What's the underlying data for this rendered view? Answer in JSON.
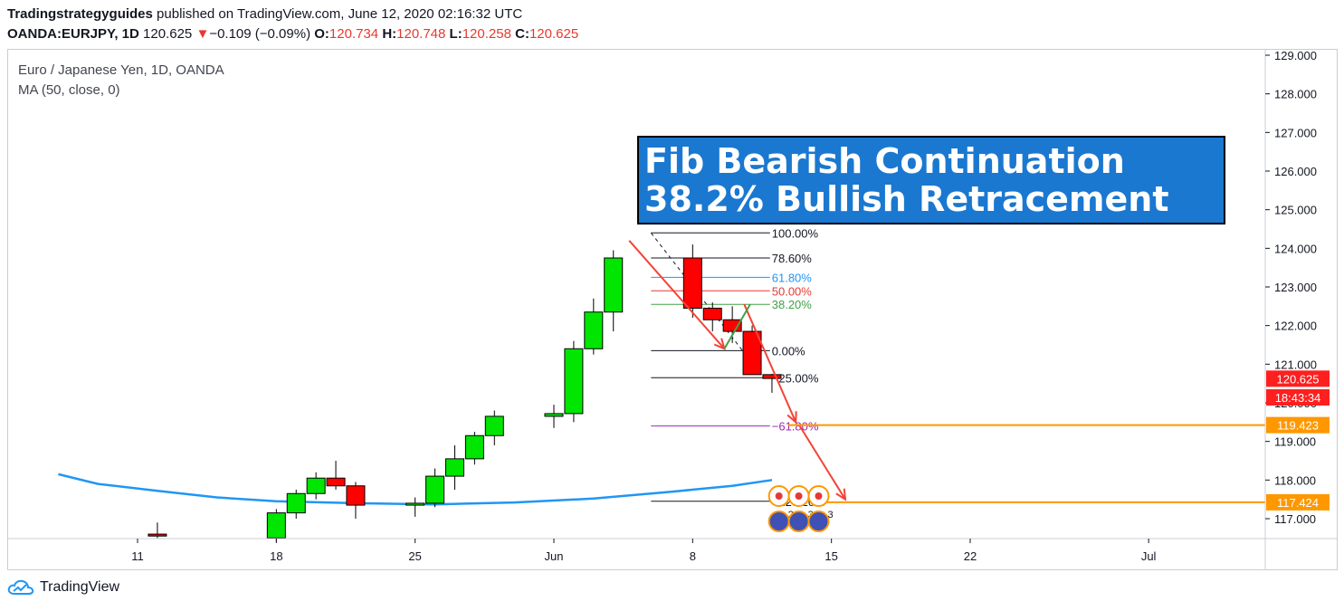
{
  "header": {
    "author": "Tradingstrategyguides",
    "published_text": "published on TradingView.com, June 12, 2020 02:16:32 UTC",
    "symbol": "OANDA:EURJPY, 1D",
    "last": "120.625",
    "change_arrow": "▼",
    "change": "−0.109 (−0.09%)",
    "o_label": "O:",
    "o": "120.734",
    "h_label": "H:",
    "h": "120.748",
    "l_label": "L:",
    "l": "120.258",
    "c_label": "C:",
    "c": "120.625"
  },
  "legend": {
    "title": "Euro / Japanese Yen, 1D, OANDA",
    "indicator": "MA (50, close, 0)"
  },
  "banner": {
    "line1": "Fib Bearish Continuation",
    "line2": "38.2% Bullish Retracement",
    "bg": "#1a78d0"
  },
  "footer": {
    "brand": "TradingView"
  },
  "chart_data": {
    "type": "candlestick",
    "title": "Euro / Japanese Yen, 1D, OANDA",
    "ylim": [
      116.45,
      129.2
    ],
    "y_ticks": [
      "117.000",
      "118.000",
      "119.000",
      "120.000",
      "121.000",
      "122.000",
      "123.000",
      "124.000",
      "125.000",
      "126.000",
      "127.000",
      "128.000",
      "129.000"
    ],
    "x_ticks": [
      {
        "label": "11",
        "day": 11
      },
      {
        "label": "18",
        "day": 18
      },
      {
        "label": "25",
        "day": 25
      },
      {
        "label": "Jun",
        "day": 32
      },
      {
        "label": "8",
        "day": 39
      },
      {
        "label": "15",
        "day": 46
      },
      {
        "label": "22",
        "day": 53
      },
      {
        "label": "Jul",
        "day": 62
      }
    ],
    "date_note": "day numbers count from May 0, 2020 (May 11 = 11, Jun 1 = 32)",
    "candles": [
      {
        "day": 12,
        "o": 116.6,
        "h": 116.9,
        "l": 116.5,
        "c": 116.55
      },
      {
        "day": 18,
        "o": 116.5,
        "h": 117.25,
        "l": 116.4,
        "c": 117.15
      },
      {
        "day": 19,
        "o": 117.15,
        "h": 117.75,
        "l": 117.0,
        "c": 117.65
      },
      {
        "day": 20,
        "o": 117.65,
        "h": 118.2,
        "l": 117.5,
        "c": 118.05
      },
      {
        "day": 21,
        "o": 118.05,
        "h": 118.5,
        "l": 117.75,
        "c": 117.85
      },
      {
        "day": 22,
        "o": 117.85,
        "h": 117.95,
        "l": 117.0,
        "c": 117.35
      },
      {
        "day": 25,
        "o": 117.35,
        "h": 117.55,
        "l": 117.05,
        "c": 117.4
      },
      {
        "day": 26,
        "o": 117.4,
        "h": 118.3,
        "l": 117.3,
        "c": 118.1
      },
      {
        "day": 27,
        "o": 118.1,
        "h": 118.9,
        "l": 117.75,
        "c": 118.55
      },
      {
        "day": 28,
        "o": 118.55,
        "h": 119.25,
        "l": 118.4,
        "c": 119.15
      },
      {
        "day": 29,
        "o": 119.15,
        "h": 119.8,
        "l": 118.9,
        "c": 119.65
      },
      {
        "day": 32,
        "o": 119.65,
        "h": 119.95,
        "l": 119.35,
        "c": 119.72
      },
      {
        "day": 33,
        "o": 119.72,
        "h": 121.6,
        "l": 119.5,
        "c": 121.4
      },
      {
        "day": 34,
        "o": 121.4,
        "h": 122.7,
        "l": 121.25,
        "c": 122.35
      },
      {
        "day": 35,
        "o": 122.35,
        "h": 123.95,
        "l": 121.85,
        "c": 123.75
      },
      {
        "day": 39,
        "o": 123.75,
        "h": 124.1,
        "l": 122.2,
        "c": 122.45
      },
      {
        "day": 40,
        "o": 122.45,
        "h": 122.6,
        "l": 121.85,
        "c": 122.15
      },
      {
        "day": 41,
        "o": 122.15,
        "h": 122.5,
        "l": 121.55,
        "c": 121.85
      },
      {
        "day": 42,
        "o": 121.85,
        "h": 122.0,
        "l": 120.85,
        "c": 120.73
      },
      {
        "day": 43,
        "o": 120.73,
        "h": 120.75,
        "l": 120.26,
        "c": 120.63
      }
    ],
    "ma50": [
      {
        "day": 7,
        "v": 118.15
      },
      {
        "day": 9,
        "v": 117.9
      },
      {
        "day": 12,
        "v": 117.72
      },
      {
        "day": 15,
        "v": 117.55
      },
      {
        "day": 18,
        "v": 117.45
      },
      {
        "day": 22,
        "v": 117.4
      },
      {
        "day": 26,
        "v": 117.37
      },
      {
        "day": 30,
        "v": 117.42
      },
      {
        "day": 34,
        "v": 117.52
      },
      {
        "day": 38,
        "v": 117.7
      },
      {
        "day": 41,
        "v": 117.85
      },
      {
        "day": 43,
        "v": 118.0
      }
    ],
    "fib_levels": [
      {
        "label": "100.00%",
        "price": 124.4,
        "color": "#131722"
      },
      {
        "label": "78.60%",
        "price": 123.75,
        "color": "#131722"
      },
      {
        "label": "61.80%",
        "price": 123.25,
        "color": "#2196f3"
      },
      {
        "label": "50.00%",
        "price": 122.9,
        "color": "#e53935"
      },
      {
        "label": "38.20%",
        "price": 122.55,
        "color": "#43a047"
      },
      {
        "label": "0.00%",
        "price": 121.35,
        "color": "#131722"
      },
      {
        "label": "−25.00%",
        "price": 120.65,
        "color": "#131722"
      },
      {
        "label": "−61.80%",
        "price": 119.4,
        "color": "#9c27b0"
      },
      {
        "label": "−127.20%",
        "price": 117.45,
        "color": "#131722"
      }
    ],
    "price_labels": [
      {
        "text": "120.625",
        "price": 120.625,
        "color": "#ff1f1f"
      },
      {
        "text": "18:43:34",
        "price": 120.14,
        "color": "#ff1f1f"
      },
      {
        "text": "119.423",
        "price": 119.423,
        "color": "#ff9800"
      },
      {
        "text": "117.424",
        "price": 117.424,
        "color": "#ff9800"
      }
    ],
    "target_levels": [
      119.423,
      117.424
    ],
    "event_badges": [
      "2",
      "3",
      "3"
    ],
    "colors": {
      "up": "#00e600",
      "down": "#ff0000",
      "ma": "#2196f3",
      "arrow": "#f44336",
      "zigzag": "#43a047",
      "target": "#ff9800"
    }
  }
}
